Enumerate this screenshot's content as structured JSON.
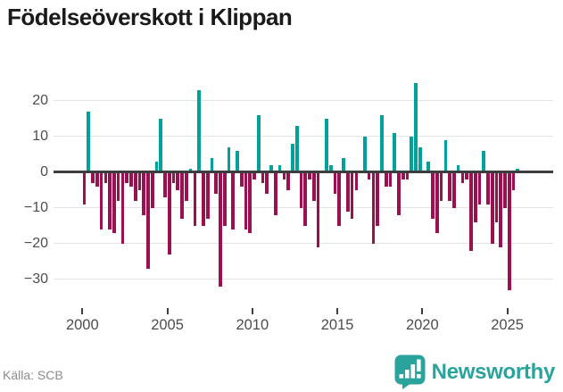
{
  "title": "Födelseöverskott i Klippan",
  "source": {
    "label": "Källa: SCB"
  },
  "branding": {
    "wordmark": "Newsworthy"
  },
  "colors": {
    "positive": "#00a09b",
    "negative": "#9a1152",
    "grid": "#e4e4e4",
    "zero_line": "#3d3d3d",
    "axis_text": "#4d4d4d",
    "title_text": "#1a1a1a",
    "source_text": "#8c8c8c",
    "brand_teal": "#2ba39d"
  },
  "chart_data": {
    "type": "bar",
    "title": "Födelseöverskott i Klippan",
    "source": "Källa: SCB",
    "frequency": "quarterly",
    "x_start": "2000-Q1",
    "x_end": "2025-Q3",
    "grid": true,
    "legend": false,
    "ylim": [
      -35,
      27
    ],
    "y_tick_values": [
      20,
      10,
      0,
      -10,
      -20,
      -30
    ],
    "x_tick_labels": [
      "2000",
      "2005",
      "2010",
      "2015",
      "2020",
      "2025"
    ],
    "x_tick_years": [
      2000,
      2005,
      2010,
      2015,
      2020,
      2025
    ],
    "values": [
      -9,
      17,
      -3,
      -4,
      -16,
      -3,
      -16,
      -17,
      -8,
      -20,
      -3,
      -4,
      -8,
      -5,
      -12,
      -27,
      -10,
      3,
      15,
      -7,
      -23,
      -3,
      -5,
      -13,
      -8,
      1,
      -15,
      23,
      -15,
      -13,
      4,
      -6,
      -32,
      -15,
      7,
      -16,
      6,
      -4,
      -16,
      -17,
      -2,
      16,
      -3,
      -6,
      2,
      -12,
      2,
      -2,
      -5,
      8,
      13,
      -10,
      -15,
      -2,
      -8,
      -21,
      0,
      15,
      2,
      -6,
      -15,
      4,
      -11,
      -13,
      -5,
      0,
      10,
      -2,
      -20,
      -15,
      16,
      -4,
      -4,
      11,
      -12,
      -2,
      -2,
      10,
      25,
      7,
      0,
      3,
      -13,
      -17,
      -8,
      9,
      -8,
      -10,
      2,
      -3,
      -2,
      -22,
      -14,
      -9,
      6,
      -9,
      -20,
      -14,
      -21,
      -10,
      -33,
      -5,
      1
    ]
  }
}
